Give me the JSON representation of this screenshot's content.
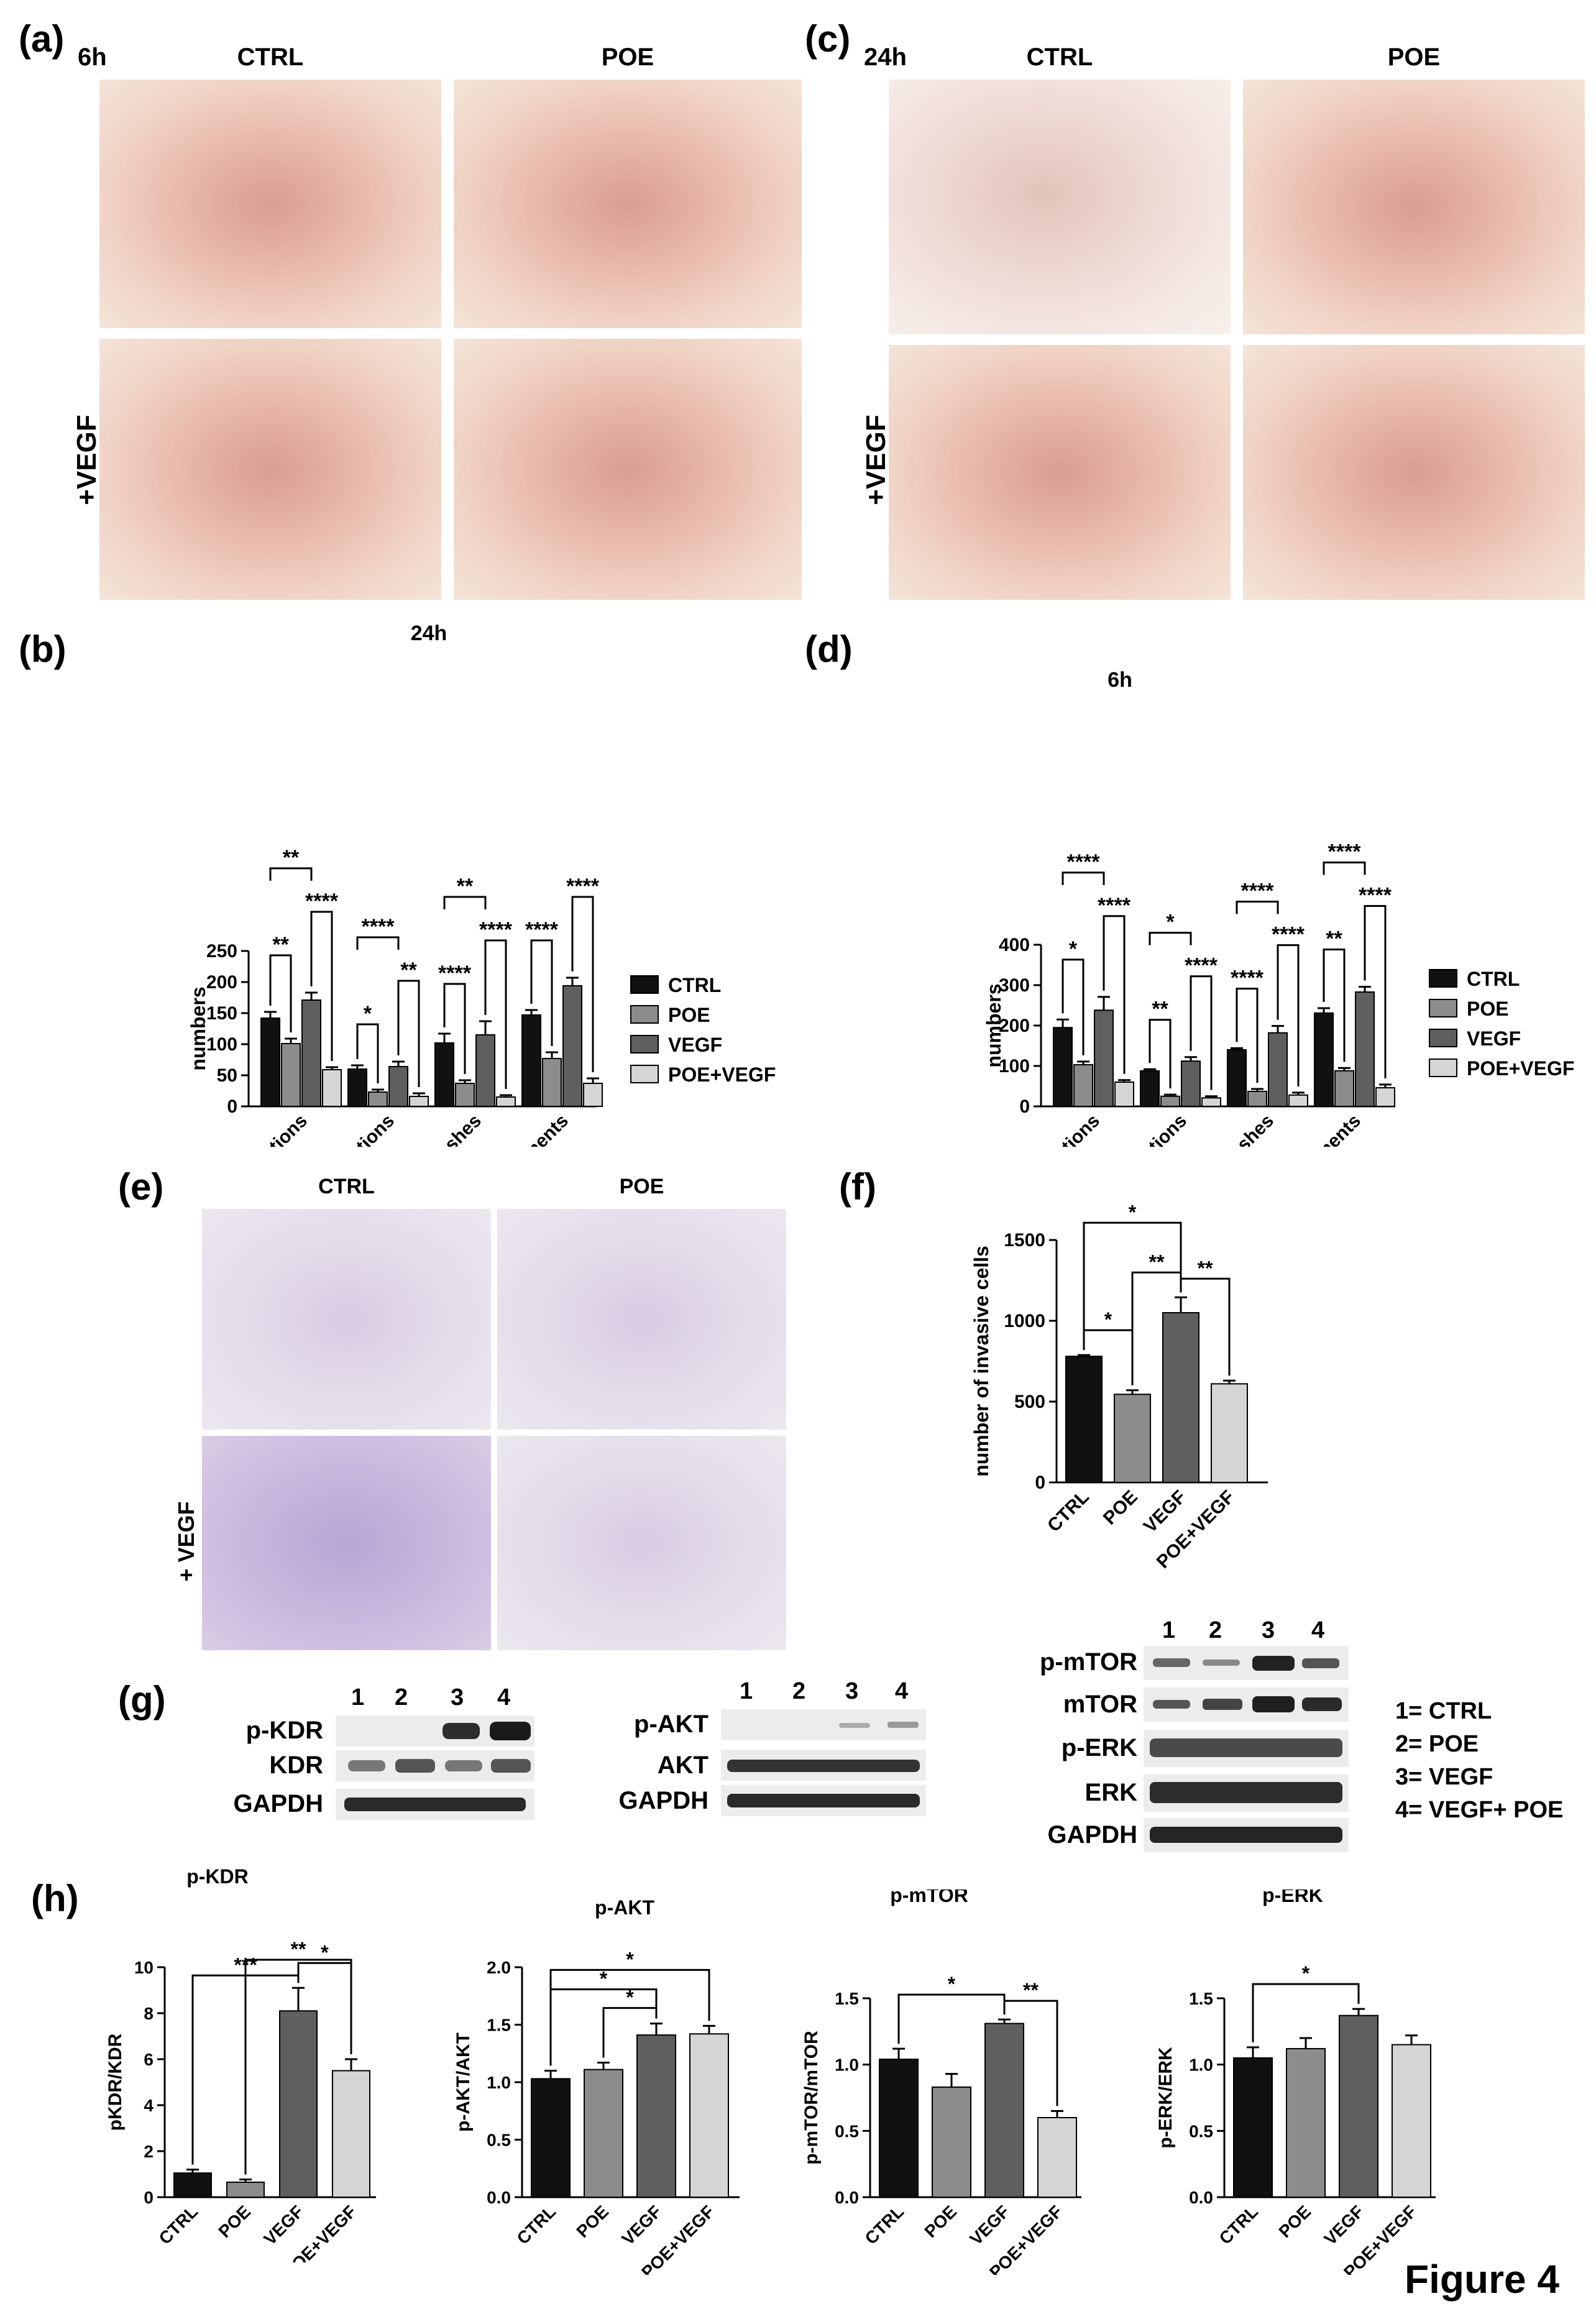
{
  "panels": {
    "a": {
      "label": "(a)",
      "time": "6h",
      "col_headers": [
        "CTRL",
        "POE"
      ],
      "row_label": "+VEGF"
    },
    "c": {
      "label": "(c)",
      "time": "24h",
      "col_headers": [
        "CTRL",
        "POE"
      ],
      "row_label": "+VEGF"
    },
    "b": {
      "label": "(b)",
      "time": "24h"
    },
    "d": {
      "label": "(d)",
      "time": "6h"
    },
    "e": {
      "label": "(e)",
      "col_headers": [
        "CTRL",
        "POE"
      ],
      "row_label": "+ VEGF"
    },
    "f": {
      "label": "(f)"
    },
    "g": {
      "label": "(g)"
    },
    "h": {
      "label": "(h)"
    }
  },
  "blots": {
    "kdr": {
      "lanes": [
        "1",
        "2",
        "3",
        "4"
      ],
      "rows": [
        "p-KDR",
        "KDR",
        "GAPDH"
      ]
    },
    "akt": {
      "lanes": [
        "1",
        "2",
        "3",
        "4"
      ],
      "rows": [
        "p-AKT",
        "AKT",
        "GAPDH"
      ]
    },
    "mtor": {
      "lanes": [
        "1",
        "2",
        "3",
        "4"
      ],
      "rows": [
        "p-mTOR",
        "mTOR",
        "p-ERK",
        "ERK",
        "GAPDH"
      ]
    },
    "key": [
      "1= CTRL",
      "2= POE",
      "3= VEGF",
      "4= VEGF+ POE"
    ]
  },
  "figure_title": "Figure 4",
  "chart_data": [
    {
      "id": "b",
      "type": "bar",
      "title": "24h",
      "categories": [
        "junctions",
        "master junctions",
        "meshes",
        "segments"
      ],
      "series": [
        {
          "name": "CTRL",
          "values": [
            142,
            60,
            102,
            147
          ],
          "errors": [
            10,
            6,
            15,
            8
          ],
          "color": "#111111"
        },
        {
          "name": "POE",
          "values": [
            101,
            23,
            37,
            77
          ],
          "errors": [
            8,
            4,
            5,
            10
          ],
          "color": "#8c8c8c"
        },
        {
          "name": "VEGF",
          "values": [
            171,
            64,
            115,
            194
          ],
          "errors": [
            12,
            8,
            22,
            13
          ],
          "color": "#5f5f5f"
        },
        {
          "name": "POE+VEGF",
          "values": [
            59,
            16,
            15,
            37
          ],
          "errors": [
            4,
            5,
            3,
            8
          ],
          "color": "#d5d5d5"
        }
      ],
      "ylabel": "numbers",
      "ylim": [
        0,
        250
      ],
      "yticks": [
        0,
        50,
        100,
        150,
        200,
        250
      ],
      "yticklabels": [
        "0",
        "50",
        "100",
        "150",
        "200",
        "250"
      ],
      "legend": "right",
      "annotations": [
        "**",
        "****",
        "**",
        "*",
        "**",
        "****",
        "****",
        "****",
        "**",
        "****",
        "****"
      ]
    },
    {
      "id": "d",
      "type": "bar",
      "title": "6h",
      "categories": [
        "junctions",
        "master junctions",
        "meshes",
        "segments"
      ],
      "series": [
        {
          "name": "CTRL",
          "values": [
            195,
            88,
            140,
            231
          ],
          "errors": [
            20,
            4,
            4,
            12
          ],
          "color": "#111111"
        },
        {
          "name": "POE",
          "values": [
            103,
            25,
            37,
            88
          ],
          "errors": [
            8,
            4,
            6,
            7
          ],
          "color": "#8c8c8c"
        },
        {
          "name": "VEGF",
          "values": [
            238,
            112,
            182,
            283
          ],
          "errors": [
            33,
            10,
            17,
            13
          ],
          "color": "#5f5f5f"
        },
        {
          "name": "POE+VEGF",
          "values": [
            60,
            21,
            28,
            46
          ],
          "errors": [
            5,
            4,
            6,
            8
          ],
          "color": "#d5d5d5"
        }
      ],
      "ylabel": "numbers",
      "ylim": [
        0,
        400
      ],
      "yticks": [
        0,
        100,
        200,
        300,
        400
      ],
      "yticklabels": [
        "0",
        "100",
        "200",
        "300",
        "400"
      ],
      "legend": "right",
      "annotations": [
        "*",
        "****",
        "****",
        "**",
        "****",
        "*",
        "****",
        "****",
        "****",
        "**",
        "****",
        "****"
      ]
    },
    {
      "id": "f",
      "type": "bar",
      "categories": [
        "CTRL",
        "POE",
        "VEGF",
        "POE+VEGF"
      ],
      "values": [
        780,
        545,
        1050,
        610
      ],
      "errors": [
        8,
        25,
        95,
        20
      ],
      "colors": [
        "#111111",
        "#8c8c8c",
        "#5f5f5f",
        "#d5d5d5"
      ],
      "ylabel": "number of invasive cells",
      "ylim": [
        0,
        1500
      ],
      "yticks": [
        0,
        500,
        1000,
        1500
      ],
      "yticklabels": [
        "0",
        "500",
        "1000",
        "1500"
      ],
      "annotations": [
        "*",
        "*",
        "**",
        "**"
      ]
    },
    {
      "id": "h1",
      "type": "bar",
      "title": "p-KDR",
      "categories": [
        "CTRL",
        "POE",
        "VEGF",
        "POE+VEGF"
      ],
      "values": [
        1.05,
        0.65,
        8.1,
        5.5
      ],
      "errors": [
        0.15,
        0.12,
        1.0,
        0.5
      ],
      "colors": [
        "#111111",
        "#8c8c8c",
        "#5f5f5f",
        "#d5d5d5"
      ],
      "ylabel": "pKDR/KDR",
      "ylim": [
        0,
        10
      ],
      "yticks": [
        0,
        2,
        4,
        6,
        8,
        10
      ],
      "yticklabels": [
        "0",
        "2",
        "4",
        "6",
        "8",
        "10"
      ],
      "annotations": [
        "***",
        "**",
        "*"
      ]
    },
    {
      "id": "h2",
      "type": "bar",
      "title": "p-AKT",
      "categories": [
        "CTRL",
        "POE",
        "VEGF",
        "POE+VEGF"
      ],
      "values": [
        1.03,
        1.11,
        1.41,
        1.42
      ],
      "errors": [
        0.07,
        0.06,
        0.1,
        0.07
      ],
      "colors": [
        "#111111",
        "#8c8c8c",
        "#5f5f5f",
        "#d5d5d5"
      ],
      "ylabel": "p-AKT/AKT",
      "ylim": [
        0,
        2.0
      ],
      "yticks": [
        0,
        0.5,
        1.0,
        1.5,
        2.0
      ],
      "yticklabels": [
        "0.0",
        "0.5",
        "1.0",
        "1.5",
        "2.0"
      ],
      "annotations": [
        "*",
        "*",
        "*"
      ]
    },
    {
      "id": "h3",
      "type": "bar",
      "title": "p-mTOR",
      "categories": [
        "CTRL",
        "POE",
        "VEGF",
        "POE+VEGF"
      ],
      "values": [
        1.04,
        0.83,
        1.31,
        0.6
      ],
      "errors": [
        0.08,
        0.1,
        0.03,
        0.05
      ],
      "colors": [
        "#111111",
        "#8c8c8c",
        "#5f5f5f",
        "#d5d5d5"
      ],
      "ylabel": "p-mTOR/mTOR",
      "ylim": [
        0,
        1.5
      ],
      "yticks": [
        0,
        0.5,
        1.0,
        1.5
      ],
      "yticklabels": [
        "0.0",
        "0.5",
        "1.0",
        "1.5"
      ],
      "annotations": [
        "*",
        "**"
      ]
    },
    {
      "id": "h4",
      "type": "bar",
      "title": "p-ERK",
      "categories": [
        "CTRL",
        "POE",
        "VEGF",
        "POE+VEGF"
      ],
      "values": [
        1.05,
        1.12,
        1.37,
        1.15
      ],
      "errors": [
        0.08,
        0.08,
        0.05,
        0.07
      ],
      "colors": [
        "#111111",
        "#8c8c8c",
        "#5f5f5f",
        "#d5d5d5"
      ],
      "ylabel": "p-ERK/ERK",
      "ylim": [
        0,
        1.5
      ],
      "yticks": [
        0,
        0.5,
        1.0,
        1.5
      ],
      "yticklabels": [
        "0.0",
        "0.5",
        "1.0",
        "1.5"
      ],
      "annotations": [
        "*"
      ]
    }
  ]
}
